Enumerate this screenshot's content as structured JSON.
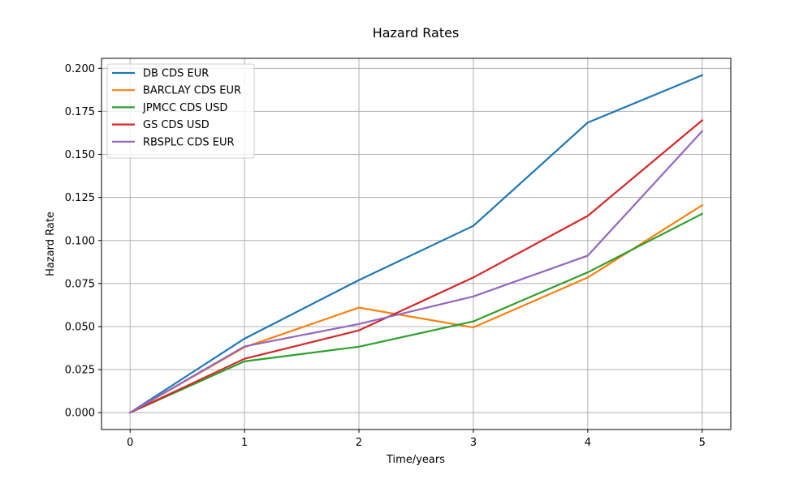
{
  "chart_data": {
    "type": "line",
    "title": "Hazard Rates",
    "xlabel": "Time/years",
    "ylabel": "Hazard Rate",
    "x": [
      0,
      1,
      2,
      3,
      4,
      5
    ],
    "xlim": [
      -0.25,
      5.25
    ],
    "ylim": [
      -0.0098,
      0.2058
    ],
    "xticks": [
      0,
      1,
      2,
      3,
      4,
      5
    ],
    "yticks": [
      0.0,
      0.025,
      0.05,
      0.075,
      0.1,
      0.125,
      0.15,
      0.175,
      0.2
    ],
    "ytick_labels": [
      "0.000",
      "0.025",
      "0.050",
      "0.075",
      "0.100",
      "0.125",
      "0.150",
      "0.175",
      "0.200"
    ],
    "xtick_labels": [
      "0",
      "1",
      "2",
      "3",
      "4",
      "5"
    ],
    "grid": true,
    "legend_position": "upper-left",
    "series": [
      {
        "name": "DB CDS EUR",
        "color": "#1f77b4",
        "values": [
          0.0,
          0.043,
          0.077,
          0.1085,
          0.1685,
          0.196
        ]
      },
      {
        "name": "BARCLAY CDS EUR",
        "color": "#ff7f0e",
        "values": [
          0.0,
          0.038,
          0.061,
          0.0495,
          0.0785,
          0.1205
        ]
      },
      {
        "name": "JPMCC CDS USD",
        "color": "#2ca02c",
        "values": [
          0.0,
          0.0298,
          0.0383,
          0.053,
          0.0815,
          0.1155
        ]
      },
      {
        "name": "GS CDS USD",
        "color": "#d62728",
        "values": [
          0.0,
          0.0313,
          0.0478,
          0.0785,
          0.1143,
          0.1698
        ]
      },
      {
        "name": "RBSPLC CDS EUR",
        "color": "#9467bd",
        "values": [
          0.0,
          0.0385,
          0.0515,
          0.0675,
          0.0912,
          0.1635
        ]
      }
    ]
  }
}
